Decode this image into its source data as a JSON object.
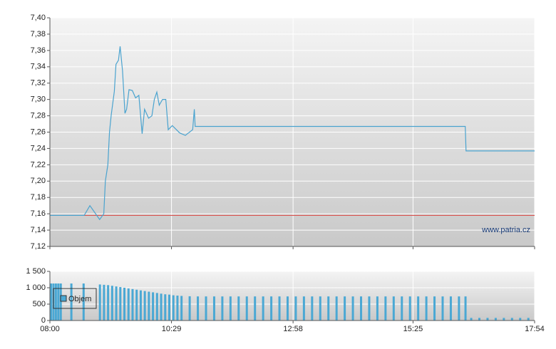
{
  "chart_data": [
    {
      "type": "line",
      "color": "#4aa3cf",
      "x": [
        "08:00",
        "08:42",
        "08:49",
        "09:01",
        "09:06",
        "09:08",
        "09:11",
        "09:13",
        "09:15",
        "09:19",
        "09:21",
        "09:24",
        "09:26",
        "09:29",
        "09:32",
        "09:34",
        "09:37",
        "09:41",
        "09:45",
        "09:49",
        "09:53",
        "09:56",
        "10:01",
        "10:05",
        "10:08",
        "10:11",
        "10:14",
        "10:18",
        "10:22",
        "10:25",
        "10:30",
        "10:39",
        "10:46",
        "10:55",
        "10:57",
        "10:58",
        "16:29",
        "16:30",
        "17:54"
      ],
      "values": [
        7.158,
        7.158,
        7.17,
        7.153,
        7.16,
        7.2,
        7.22,
        7.26,
        7.28,
        7.31,
        7.343,
        7.348,
        7.365,
        7.335,
        7.283,
        7.288,
        7.312,
        7.311,
        7.302,
        7.305,
        7.258,
        7.288,
        7.277,
        7.28,
        7.3,
        7.309,
        7.293,
        7.3,
        7.3,
        7.263,
        7.268,
        7.259,
        7.256,
        7.263,
        7.288,
        7.267,
        7.267,
        7.237,
        7.237
      ],
      "reference_line": {
        "value": 7.158,
        "color": "#d9534f"
      },
      "annotation": "www.patria.cz",
      "xlim": [
        "08:00",
        "17:54"
      ],
      "xticks": [
        "08:00",
        "10:29",
        "12:58",
        "15:25",
        "17:54"
      ],
      "ylim": [
        7.12,
        7.4
      ],
      "yticks": [
        {
          "value": 7.12,
          "label": "7,12"
        },
        {
          "value": 7.14,
          "label": "7,14"
        },
        {
          "value": 7.16,
          "label": "7,16"
        },
        {
          "value": 7.18,
          "label": "7,18"
        },
        {
          "value": 7.2,
          "label": "7,20"
        },
        {
          "value": 7.22,
          "label": "7,22"
        },
        {
          "value": 7.24,
          "label": "7,24"
        },
        {
          "value": 7.26,
          "label": "7,26"
        },
        {
          "value": 7.28,
          "label": "7,28"
        },
        {
          "value": 7.3,
          "label": "7,30"
        },
        {
          "value": 7.32,
          "label": "7,32"
        },
        {
          "value": 7.34,
          "label": "7,34"
        },
        {
          "value": 7.36,
          "label": "7,36"
        },
        {
          "value": 7.38,
          "label": "7,38"
        },
        {
          "value": 7.4,
          "label": "7,40"
        }
      ],
      "grid": true
    },
    {
      "type": "bar",
      "x": [
        "08:00",
        "08:03",
        "08:06",
        "08:09",
        "08:12",
        "08:25",
        "08:40",
        "09:00",
        "09:05",
        "09:10",
        "09:15",
        "09:20",
        "09:25",
        "09:30",
        "09:35",
        "09:40",
        "09:45",
        "09:50",
        "09:55",
        "10:00",
        "10:05",
        "10:10",
        "10:15",
        "10:20",
        "10:25",
        "10:30",
        "10:35",
        "10:40",
        "10:50",
        "11:00",
        "11:10",
        "11:20",
        "11:30",
        "11:40",
        "11:50",
        "12:00",
        "12:10",
        "12:20",
        "12:30",
        "12:40",
        "12:50",
        "13:00",
        "13:10",
        "13:20",
        "13:30",
        "13:40",
        "13:50",
        "14:00",
        "14:10",
        "14:20",
        "14:30",
        "14:40",
        "14:50",
        "15:00",
        "15:10",
        "15:20",
        "15:30",
        "15:40",
        "15:50",
        "16:00",
        "16:10",
        "16:20",
        "16:28",
        "16:35",
        "16:45",
        "16:55",
        "17:05",
        "17:15",
        "17:25",
        "17:35",
        "17:45"
      ],
      "series": [
        {
          "name": "Objem",
          "color": "#4aa8d4",
          "values": [
            1130,
            1130,
            1130,
            1130,
            1130,
            1130,
            1130,
            1100,
            1090,
            1080,
            1060,
            1040,
            1020,
            1000,
            980,
            960,
            940,
            920,
            900,
            880,
            860,
            840,
            820,
            800,
            790,
            770,
            760,
            750,
            740,
            735,
            735,
            735,
            735,
            735,
            735,
            735,
            735,
            735,
            735,
            735,
            735,
            735,
            735,
            735,
            735,
            735,
            735,
            735,
            735,
            735,
            735,
            735,
            735,
            735,
            735,
            735,
            735,
            735,
            735,
            735,
            735,
            735,
            735,
            80,
            80,
            80,
            80,
            80,
            80,
            80,
            80
          ]
        }
      ],
      "legend": "upper left",
      "xlim": [
        "08:00",
        "17:54"
      ],
      "xticks": [
        "08:00",
        "10:29",
        "12:58",
        "15:25",
        "17:54"
      ],
      "ylim": [
        0,
        1500
      ],
      "yticks": [
        0,
        500,
        {
          "value": 1000,
          "label": "1 000"
        },
        {
          "value": 1500,
          "label": "1 500"
        }
      ],
      "grid": true
    }
  ]
}
